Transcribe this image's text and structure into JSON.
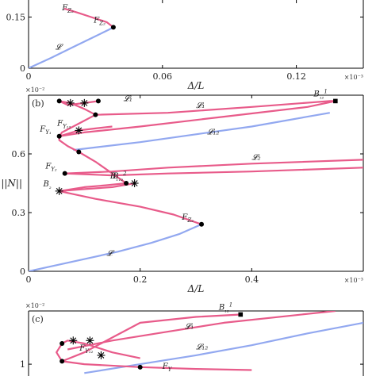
{
  "chart_data": [
    {
      "id": "a",
      "type": "line",
      "xlabel": "Δ/L",
      "x_multiplier": "×10⁻³",
      "xlim": [
        0,
        0.15
      ],
      "ylim": [
        0,
        0.2
      ],
      "xticks": [
        0,
        0.06,
        0.12
      ],
      "yticks": [
        0,
        0.15
      ],
      "xtick_labels": [
        "0",
        "0.06",
        "0.12"
      ],
      "ytick_labels": [
        "0",
        "0.15"
      ],
      "series": [
        {
          "name": "𝓛",
          "color": "#92a8f0",
          "points": [
            [
              0,
              0
            ],
            [
              0.01,
              0.03
            ],
            [
              0.02,
              0.062
            ],
            [
              0.03,
              0.094
            ],
            [
              0.036,
              0.113
            ],
            [
              0.038,
              0.12
            ]
          ]
        },
        {
          "name": "",
          "color": "#e85b8a",
          "points": [
            [
              0.038,
              0.12
            ],
            [
              0.035,
              0.135
            ],
            [
              0.028,
              0.15
            ],
            [
              0.022,
              0.163
            ],
            [
              0.016,
              0.175
            ]
          ]
        }
      ],
      "points": [
        {
          "label": "F",
          "sub": "Z₂",
          "x": 0.038,
          "y": 0.12,
          "marker": "dot"
        }
      ],
      "annotations": [
        {
          "text": "𝓛",
          "x": 0.012,
          "y": 0.055
        },
        {
          "text": "F",
          "sub": "Z₂",
          "x": 0.015,
          "y": 0.17
        }
      ]
    },
    {
      "id": "b",
      "panel_label": "(b)",
      "type": "line",
      "xlabel": "Δ/L",
      "ylabel": "||N||",
      "x_multiplier": "×10⁻³",
      "y_multiplier": "×10⁻²",
      "xlim": [
        0,
        0.6
      ],
      "ylim": [
        0,
        0.9
      ],
      "xticks": [
        0,
        0.2,
        0.4
      ],
      "yticks": [
        0,
        0.3,
        0.6
      ],
      "xtick_labels": [
        "0",
        "0.2",
        "0.4"
      ],
      "ytick_labels": [
        "0",
        "0.3",
        "0.6"
      ],
      "series": [
        {
          "name": "𝓛",
          "color": "#92a8f0",
          "points": [
            [
              0,
              0
            ],
            [
              0.08,
              0.05
            ],
            [
              0.16,
              0.1
            ],
            [
              0.22,
              0.145
            ],
            [
              0.27,
              0.19
            ],
            [
              0.31,
              0.24
            ]
          ]
        },
        {
          "name": "𝓛₁₂",
          "color": "#92a8f0",
          "points": [
            [
              0.08,
              0.62
            ],
            [
              0.2,
              0.66
            ],
            [
              0.3,
              0.7
            ],
            [
              0.4,
              0.74
            ],
            [
              0.5,
              0.79
            ],
            [
              0.54,
              0.81
            ]
          ]
        },
        {
          "name": "",
          "color": "#e85b8a",
          "points": [
            [
              0.31,
              0.24
            ],
            [
              0.26,
              0.29
            ],
            [
              0.2,
              0.33
            ],
            [
              0.12,
              0.37
            ],
            [
              0.055,
              0.41
            ]
          ]
        },
        {
          "name": "",
          "color": "#e85b8a",
          "points": [
            [
              0.055,
              0.41
            ],
            [
              0.1,
              0.43
            ],
            [
              0.14,
              0.44
            ],
            [
              0.175,
              0.45
            ]
          ]
        },
        {
          "name": "",
          "color": "#e85b8a",
          "points": [
            [
              0.055,
              0.41
            ],
            [
              0.1,
              0.42
            ],
            [
              0.15,
              0.43
            ],
            [
              0.19,
              0.45
            ]
          ]
        },
        {
          "name": "𝓛₂",
          "color": "#e85b8a",
          "points": [
            [
              0.065,
              0.5
            ],
            [
              0.15,
              0.51
            ],
            [
              0.25,
              0.53
            ],
            [
              0.4,
              0.55
            ],
            [
              0.6,
              0.57
            ]
          ]
        },
        {
          "name": "",
          "color": "#e85b8a",
          "points": [
            [
              0.065,
              0.5
            ],
            [
              0.15,
              0.49
            ],
            [
              0.25,
              0.5
            ],
            [
              0.4,
              0.51
            ],
            [
              0.6,
              0.53
            ]
          ]
        },
        {
          "name": "",
          "color": "#e85b8a",
          "points": [
            [
              0.175,
              0.45
            ],
            [
              0.15,
              0.5
            ],
            [
              0.12,
              0.56
            ],
            [
              0.09,
              0.61
            ]
          ]
        },
        {
          "name": "",
          "color": "#e85b8a",
          "points": [
            [
              0.09,
              0.61
            ],
            [
              0.07,
              0.64
            ],
            [
              0.055,
              0.67
            ],
            [
              0.055,
              0.69
            ]
          ]
        },
        {
          "name": "",
          "color": "#e85b8a",
          "points": [
            [
              0.055,
              0.69
            ],
            [
              0.06,
              0.71
            ],
            [
              0.08,
              0.74
            ],
            [
              0.1,
              0.77
            ],
            [
              0.12,
              0.8
            ]
          ]
        },
        {
          "name": "",
          "color": "#e85b8a",
          "points": [
            [
              0.12,
              0.8
            ],
            [
              0.1,
              0.83
            ],
            [
              0.075,
              0.86
            ],
            [
              0.055,
              0.87
            ]
          ]
        },
        {
          "name": "",
          "color": "#e85b8a",
          "points": [
            [
              0.055,
              0.87
            ],
            [
              0.07,
              0.85
            ],
            [
              0.1,
              0.86
            ],
            [
              0.125,
              0.87
            ]
          ]
        },
        {
          "name": "",
          "color": "#e85b8a",
          "points": [
            [
              0.055,
              0.69
            ],
            [
              0.09,
              0.72
            ],
            [
              0.12,
              0.73
            ],
            [
              0.15,
              0.74
            ]
          ]
        },
        {
          "name": "𝓛₁",
          "color": "#e85b8a",
          "points": [
            [
              0.12,
              0.8
            ],
            [
              0.25,
              0.81
            ],
            [
              0.4,
              0.84
            ],
            [
              0.54,
              0.87
            ],
            [
              0.55,
              0.87
            ]
          ]
        },
        {
          "name": "",
          "color": "#e85b8a",
          "points": [
            [
              0.055,
              0.69
            ],
            [
              0.1,
              0.71
            ],
            [
              0.2,
              0.74
            ],
            [
              0.35,
              0.79
            ],
            [
              0.5,
              0.84
            ],
            [
              0.55,
              0.87
            ]
          ]
        }
      ],
      "points": [
        {
          "label": "F",
          "sub": "Z₂",
          "x": 0.31,
          "y": 0.24,
          "marker": "dot"
        },
        {
          "label": "B",
          "sub": "₂",
          "x": 0.055,
          "y": 0.41,
          "marker": "star"
        },
        {
          "label": "B",
          "sub": "₁",
          "x": 0.175,
          "y": 0.45,
          "marker": "dot"
        },
        {
          "label": "B",
          "sub": "₁₂",
          "sup": "2",
          "x": 0.19,
          "y": 0.45,
          "marker": "star"
        },
        {
          "label": "F",
          "sub": "Y₂",
          "x": 0.065,
          "y": 0.5,
          "marker": "dot"
        },
        {
          "label": "F",
          "sub": "Y₁",
          "x": 0.055,
          "y": 0.69,
          "marker": "dot"
        },
        {
          "label": "",
          "x": 0.09,
          "y": 0.61,
          "marker": "dot"
        },
        {
          "label": "F",
          "sub": "Y₁₂",
          "x": 0.09,
          "y": 0.72,
          "marker": "star"
        },
        {
          "label": "",
          "x": 0.12,
          "y": 0.8,
          "marker": "dot"
        },
        {
          "label": "",
          "x": 0.055,
          "y": 0.87,
          "marker": "dot"
        },
        {
          "label": "",
          "x": 0.075,
          "y": 0.86,
          "marker": "star"
        },
        {
          "label": "",
          "x": 0.1,
          "y": 0.86,
          "marker": "star"
        },
        {
          "label": "",
          "x": 0.125,
          "y": 0.87,
          "marker": "dot"
        },
        {
          "label": "B",
          "sub": "₁₂",
          "sup": "1",
          "x": 0.55,
          "y": 0.87,
          "marker": "square"
        }
      ],
      "annotations": [
        {
          "text": "𝓛₁",
          "x": 0.3,
          "y": 0.835
        },
        {
          "text": "𝓛₁₂",
          "x": 0.32,
          "y": 0.7
        },
        {
          "text": "𝓛₂",
          "x": 0.4,
          "y": 0.57
        },
        {
          "text": "𝓛",
          "x": 0.14,
          "y": 0.08
        },
        {
          "text": "𝓛₁",
          "x": 0.17,
          "y": 0.87
        }
      ]
    },
    {
      "id": "c",
      "panel_label": "(c)",
      "type": "line",
      "x_multiplier": "",
      "y_multiplier": "×10⁻²",
      "xlim": [
        0,
        0.6
      ],
      "ylim": [
        0.8,
        1.9
      ],
      "yticks": [
        1
      ],
      "ytick_labels": [
        "1"
      ],
      "series": [
        {
          "name": "𝓛₁₂",
          "color": "#92a8f0",
          "points": [
            [
              0.1,
              0.85
            ],
            [
              0.2,
              1.0
            ],
            [
              0.3,
              1.15
            ],
            [
              0.4,
              1.32
            ],
            [
              0.5,
              1.52
            ],
            [
              0.6,
              1.7
            ]
          ]
        },
        {
          "name": "𝓛₁",
          "color": "#e85b8a",
          "points": [
            [
              0.07,
              1.25
            ],
            [
              0.15,
              1.4
            ],
            [
              0.25,
              1.55
            ],
            [
              0.35,
              1.7
            ],
            [
              0.5,
              1.85
            ],
            [
              0.55,
              1.9
            ]
          ]
        },
        {
          "name": "",
          "color": "#e85b8a",
          "points": [
            [
              0.06,
              1.05
            ],
            [
              0.1,
              1.2
            ],
            [
              0.15,
              1.45
            ],
            [
              0.2,
              1.7
            ],
            [
              0.3,
              1.8
            ],
            [
              0.38,
              1.84
            ]
          ]
        },
        {
          "name": "",
          "color": "#e85b8a",
          "points": [
            [
              0.06,
              1.05
            ],
            [
              0.05,
              1.2
            ],
            [
              0.06,
              1.35
            ],
            [
              0.07,
              1.4
            ],
            [
              0.1,
              1.35
            ],
            [
              0.15,
              1.2
            ],
            [
              0.2,
              1.1
            ]
          ]
        },
        {
          "name": "",
          "color": "#e85b8a",
          "points": [
            [
              0.06,
              1.05
            ],
            [
              0.1,
              1.0
            ],
            [
              0.2,
              0.95
            ],
            [
              0.3,
              0.92
            ],
            [
              0.4,
              0.9
            ]
          ]
        }
      ],
      "points": [
        {
          "label": "",
          "x": 0.06,
          "y": 1.05,
          "marker": "dot"
        },
        {
          "label": "",
          "x": 0.06,
          "y": 1.35,
          "marker": "dot"
        },
        {
          "label": "",
          "x": 0.08,
          "y": 1.4,
          "marker": "star"
        },
        {
          "label": "",
          "x": 0.11,
          "y": 1.4,
          "marker": "star"
        },
        {
          "label": "F",
          "sub": "Y₁₂",
          "x": 0.13,
          "y": 1.15,
          "marker": "star"
        },
        {
          "label": "",
          "x": 0.2,
          "y": 0.95,
          "marker": "dot"
        },
        {
          "label": "B",
          "sub": "₁₂",
          "sup": "1",
          "x": 0.38,
          "y": 1.84,
          "marker": "square"
        }
      ],
      "annotations": [
        {
          "text": "𝓛₁",
          "x": 0.28,
          "y": 1.6
        },
        {
          "text": "𝓛₁₂",
          "x": 0.3,
          "y": 1.25
        },
        {
          "text": "F",
          "sub": "Y",
          "x": 0.24,
          "y": 0.92
        }
      ]
    }
  ]
}
